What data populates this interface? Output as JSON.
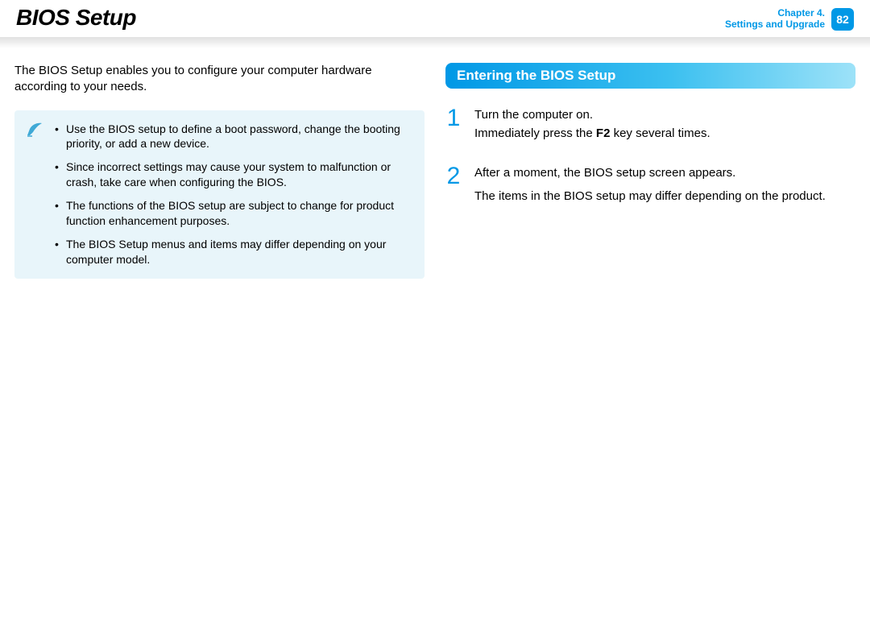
{
  "header": {
    "title": "BIOS Setup",
    "chapter_line1": "Chapter 4.",
    "chapter_line2": "Settings and Upgrade",
    "page_number": "82",
    "accent_color": "#0098e6"
  },
  "left_column": {
    "intro": "The BIOS Setup enables you to configure your computer hardware according to your needs.",
    "note_box": {
      "background_color": "#e8f5fa",
      "icon_name": "note-quill-icon",
      "bullets": [
        "Use the BIOS setup to define a boot password, change the booting priority, or add a new device.",
        "Since incorrect settings may cause your system to malfunction or crash, take care when configuring the BIOS.",
        "The functions of the BIOS setup are subject to change for product function enhancement purposes.",
        "The BIOS Setup menus and items may differ depending on your computer model."
      ]
    }
  },
  "right_column": {
    "section_heading": "Entering the BIOS Setup",
    "heading_gradient": [
      "#0098e6",
      "#3cc0f0",
      "#9de2f8"
    ],
    "steps": [
      {
        "num": "1",
        "lines_html": [
          "Turn the computer on.",
          "Immediately press the <span class=\"key\">F2</span> key several times."
        ]
      },
      {
        "num": "2",
        "lines_html": [
          "After a moment, the BIOS setup screen appears.",
          "<span class=\"spaced-marker\"></span>The items in the BIOS setup may differ depending on the product."
        ]
      }
    ]
  },
  "typography": {
    "title_fontsize": 28,
    "body_fontsize": 15,
    "note_fontsize": 14,
    "step_num_fontsize": 30,
    "step_num_color": "#0098e6"
  }
}
